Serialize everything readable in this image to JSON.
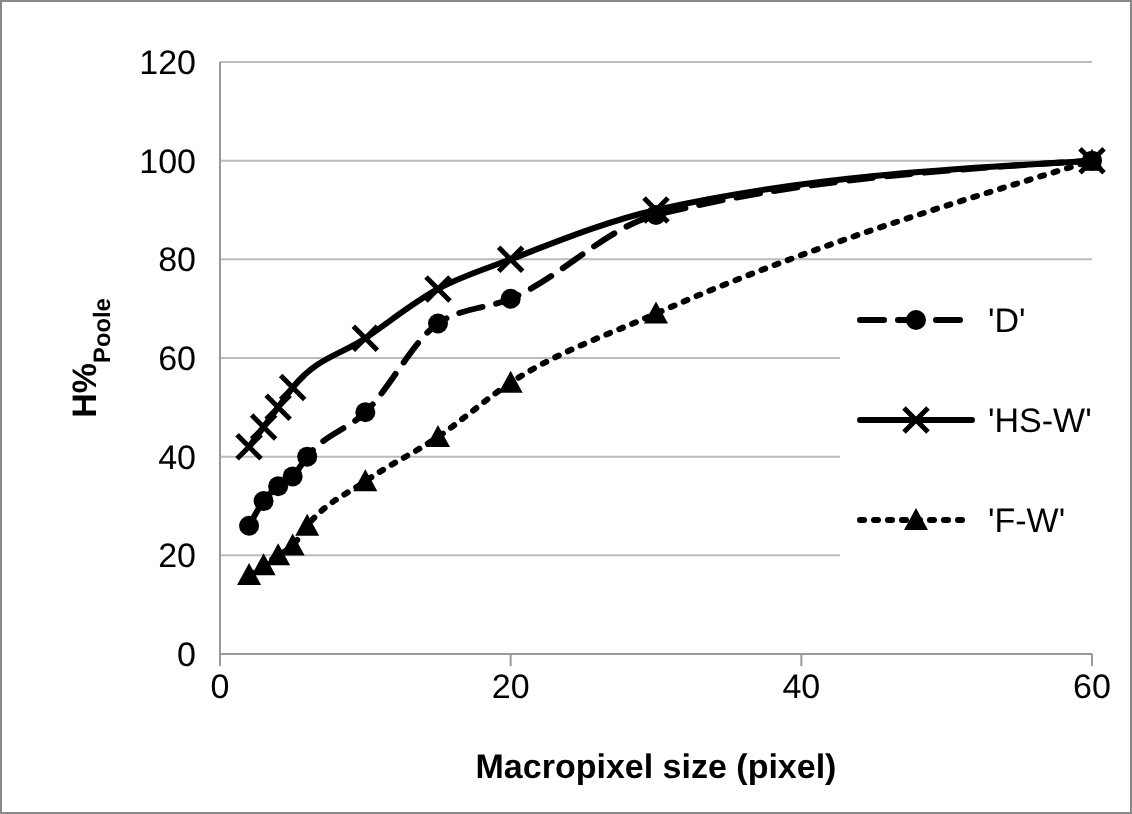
{
  "chart_data": {
    "type": "line",
    "xlabel": "Macropixel size (pixel)",
    "ylabel": "H%$_{Poole}$",
    "xlim": [
      0,
      60
    ],
    "xticks": [
      0,
      20,
      40,
      60
    ],
    "ylim": [
      0,
      120
    ],
    "yticks": [
      0,
      20,
      40,
      60,
      80,
      100,
      120
    ],
    "grid": "y",
    "legend": "right",
    "series": [
      {
        "name": "'D'",
        "color": "#000000",
        "marker": "circle",
        "line_style": "dashed",
        "x": [
          2,
          3,
          4,
          5,
          6,
          10,
          15,
          20,
          30,
          60
        ],
        "values": [
          26,
          31,
          34,
          36,
          40,
          49,
          67,
          72,
          89,
          100
        ]
      },
      {
        "name": "'HS-W'",
        "color": "#000000",
        "marker": "cross",
        "line_style": "solid",
        "x": [
          2,
          3,
          4,
          5,
          10,
          15,
          20,
          30,
          60
        ],
        "values": [
          42,
          46,
          50,
          54,
          64,
          74,
          80,
          90,
          100
        ]
      },
      {
        "name": "'F-W'",
        "color": "#000000",
        "marker": "triangle",
        "line_style": "dotted",
        "x": [
          2,
          3,
          4,
          5,
          6,
          10,
          15,
          20,
          30,
          60
        ],
        "values": [
          16,
          18,
          20,
          22,
          26,
          35,
          44,
          55,
          69,
          100
        ]
      }
    ]
  }
}
